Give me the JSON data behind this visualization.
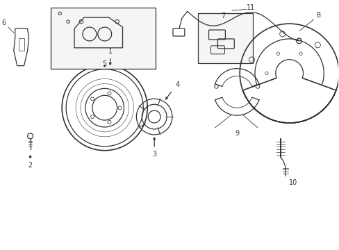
{
  "background_color": "#ffffff",
  "line_color": "#333333",
  "figsize": [
    4.89,
    3.6
  ],
  "dpi": 100
}
